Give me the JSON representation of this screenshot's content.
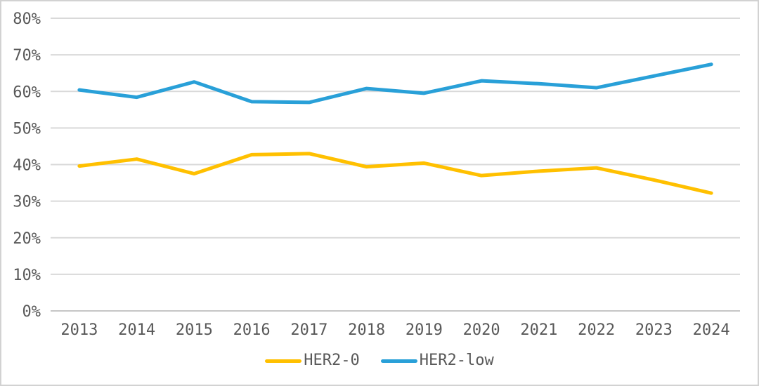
{
  "chart_data": {
    "type": "line",
    "title": "",
    "xlabel": "",
    "ylabel": "",
    "categories": [
      "2013",
      "2014",
      "2015",
      "2016",
      "2017",
      "2018",
      "2019",
      "2020",
      "2021",
      "2022",
      "2023",
      "2024"
    ],
    "series": [
      {
        "name": "HER2-0",
        "color": "#FFC000",
        "values": [
          39.6,
          41.5,
          37.5,
          42.7,
          43.0,
          39.4,
          40.4,
          37.0,
          38.2,
          39.1,
          35.8,
          32.2
        ]
      },
      {
        "name": "HER2-low",
        "color": "#29A0D8",
        "values": [
          60.4,
          58.4,
          62.6,
          57.2,
          57.0,
          60.8,
          59.5,
          62.9,
          62.1,
          61.0,
          64.2,
          67.4
        ]
      }
    ],
    "ylim": [
      0,
      80
    ],
    "ytick_step": 10,
    "yticks": [
      "0%",
      "10%",
      "20%",
      "30%",
      "40%",
      "50%",
      "60%",
      "70%",
      "80%"
    ],
    "grid": true,
    "legend_position": "bottom-center"
  },
  "styles": {
    "grid_color": "#d9d9d9",
    "axis_line_color": "#c6c6c6",
    "tick_label_color": "#595959",
    "series_line_width": 5,
    "background": "#ffffff",
    "frame_border_color": "#d2d2d2"
  }
}
